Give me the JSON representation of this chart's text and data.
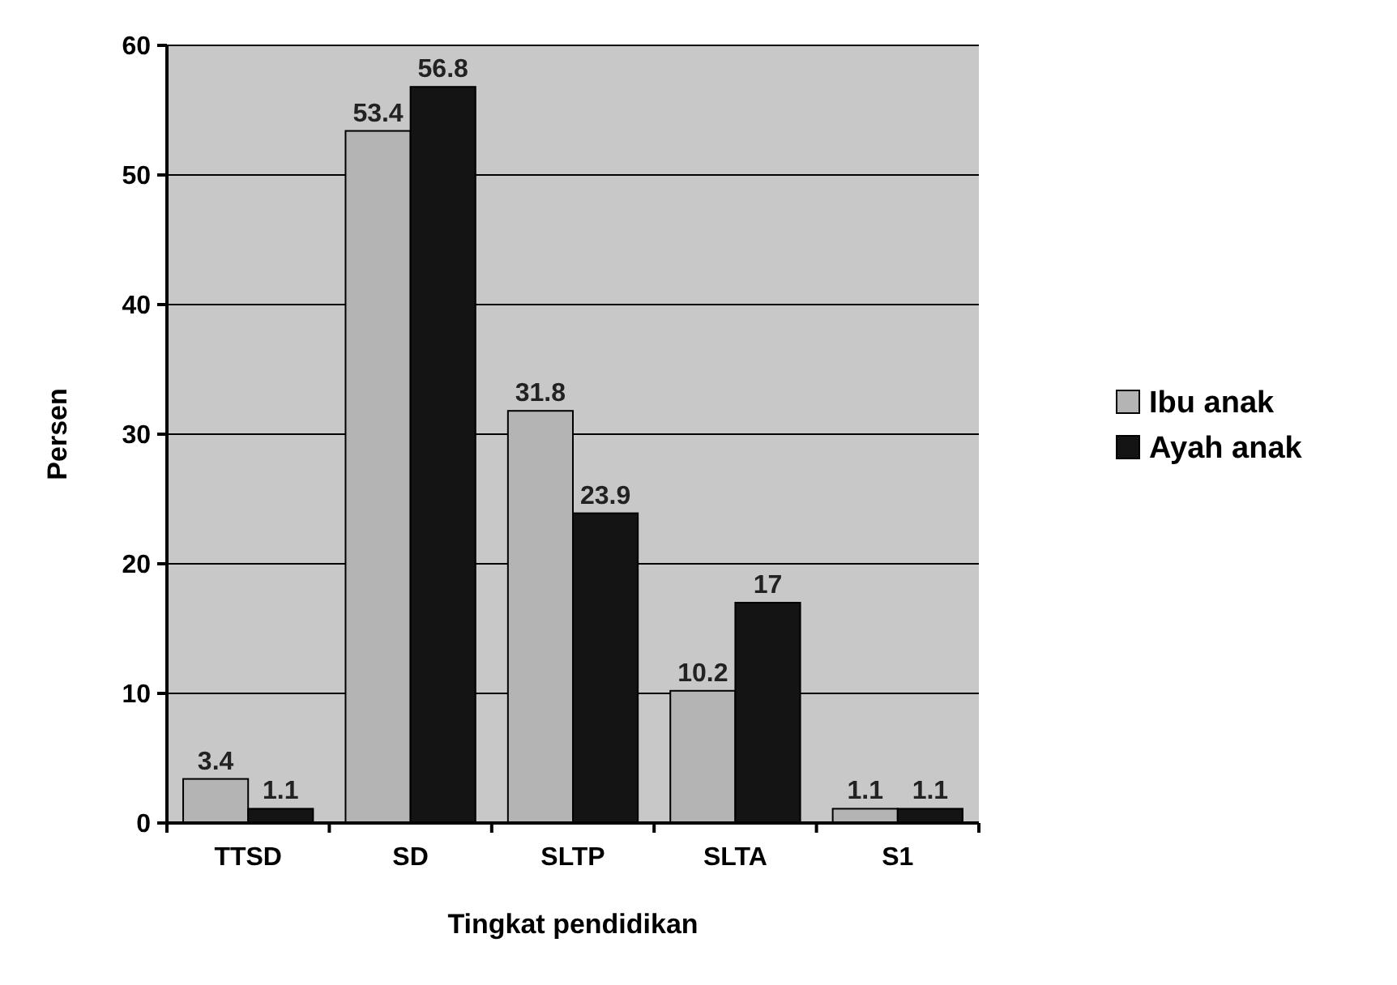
{
  "chart_data": {
    "type": "bar",
    "xlabel": "Tingkat pendidikan",
    "ylabel": "Persen",
    "categories": [
      "TTSD",
      "SD",
      "SLTP",
      "SLTA",
      "S1"
    ],
    "series": [
      {
        "name": "Ibu anak",
        "color": "#b4b4b4",
        "values": [
          3.4,
          53.4,
          31.8,
          10.2,
          1.1
        ]
      },
      {
        "name": "Ayah anak",
        "color": "#141414",
        "values": [
          1.1,
          56.8,
          23.9,
          17,
          1.1
        ]
      }
    ],
    "ylim": [
      0,
      60
    ],
    "yticks": [
      0,
      10,
      20,
      30,
      40,
      50,
      60
    ],
    "grid": "y",
    "legend": "right",
    "data_labels": true
  }
}
